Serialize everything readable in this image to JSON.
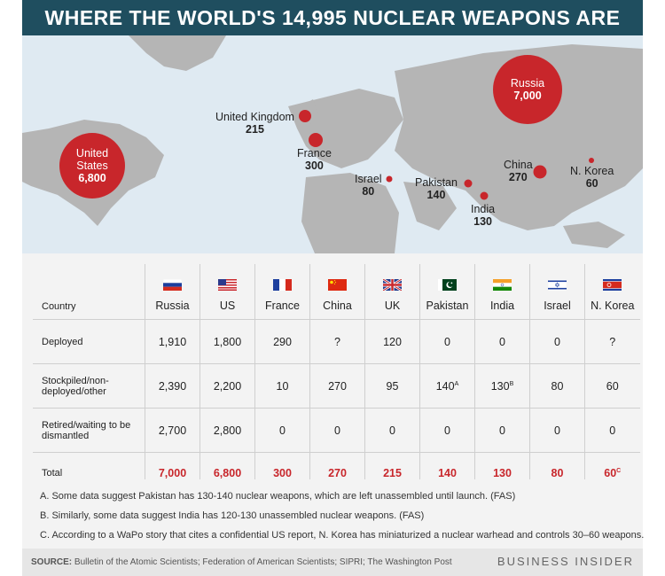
{
  "title": "WHERE THE WORLD'S 14,995 NUCLEAR WEAPONS ARE",
  "map": {
    "labels": [
      {
        "name": "Russia",
        "value": "7,000"
      },
      {
        "name": "United States",
        "value": "6,800"
      },
      {
        "name": "United Kingdom",
        "value": "215"
      },
      {
        "name": "France",
        "value": "300"
      },
      {
        "name": "Israel",
        "value": "80"
      },
      {
        "name": "Pakistan",
        "value": "140"
      },
      {
        "name": "India",
        "value": "130"
      },
      {
        "name": "China",
        "value": "270"
      },
      {
        "name": "N. Korea",
        "value": "60"
      }
    ]
  },
  "chart_data": {
    "type": "table",
    "columns": [
      "Country",
      "Russia",
      "US",
      "France",
      "China",
      "UK",
      "Pakistan",
      "India",
      "Israel",
      "N. Korea"
    ],
    "rows": [
      {
        "label": "Deployed",
        "values": [
          "1,910",
          "1,800",
          "290",
          "?",
          "120",
          "0",
          "0",
          "0",
          "?"
        ]
      },
      {
        "label": "Stockpiled/non-deployed/other",
        "values": [
          "2,390",
          "2,200",
          "10",
          "270",
          "95",
          "140",
          "130",
          "80",
          "60"
        ]
      },
      {
        "label": "Retired/waiting to be dismantled",
        "values": [
          "2,700",
          "2,800",
          "0",
          "0",
          "0",
          "0",
          "0",
          "0",
          "0"
        ]
      },
      {
        "label": "Total",
        "values": [
          "7,000",
          "6,800",
          "300",
          "270",
          "215",
          "140",
          "130",
          "80",
          "60"
        ]
      }
    ],
    "footnote_marks": {
      "stockpiled_pakistan": "A",
      "stockpiled_india": "B",
      "total_nkorea": "C"
    }
  },
  "notes": {
    "a": "A. Some data suggest Pakistan has 130-140 nuclear weapons, which are left unassembled until launch. (FAS)",
    "b": "B. Similarly, some data suggest India has 120-130 unassembled nuclear weapons. (FAS)",
    "c": "C. According to a WaPo story that cites a confidential US report, N. Korea has miniaturized a nuclear warhead and controls 30–60 weapons."
  },
  "footer": {
    "source_label": "SOURCE:",
    "source_text": " Bulletin of the Atomic Scientists; Federation of American Scientists; SIPRI; The Washington Post",
    "brand": "BUSINESS INSIDER"
  },
  "colors": {
    "accent": "#c8262b",
    "banner": "#1f4e5f",
    "land": "#b5b5b5",
    "water": "#dfeaf2"
  }
}
